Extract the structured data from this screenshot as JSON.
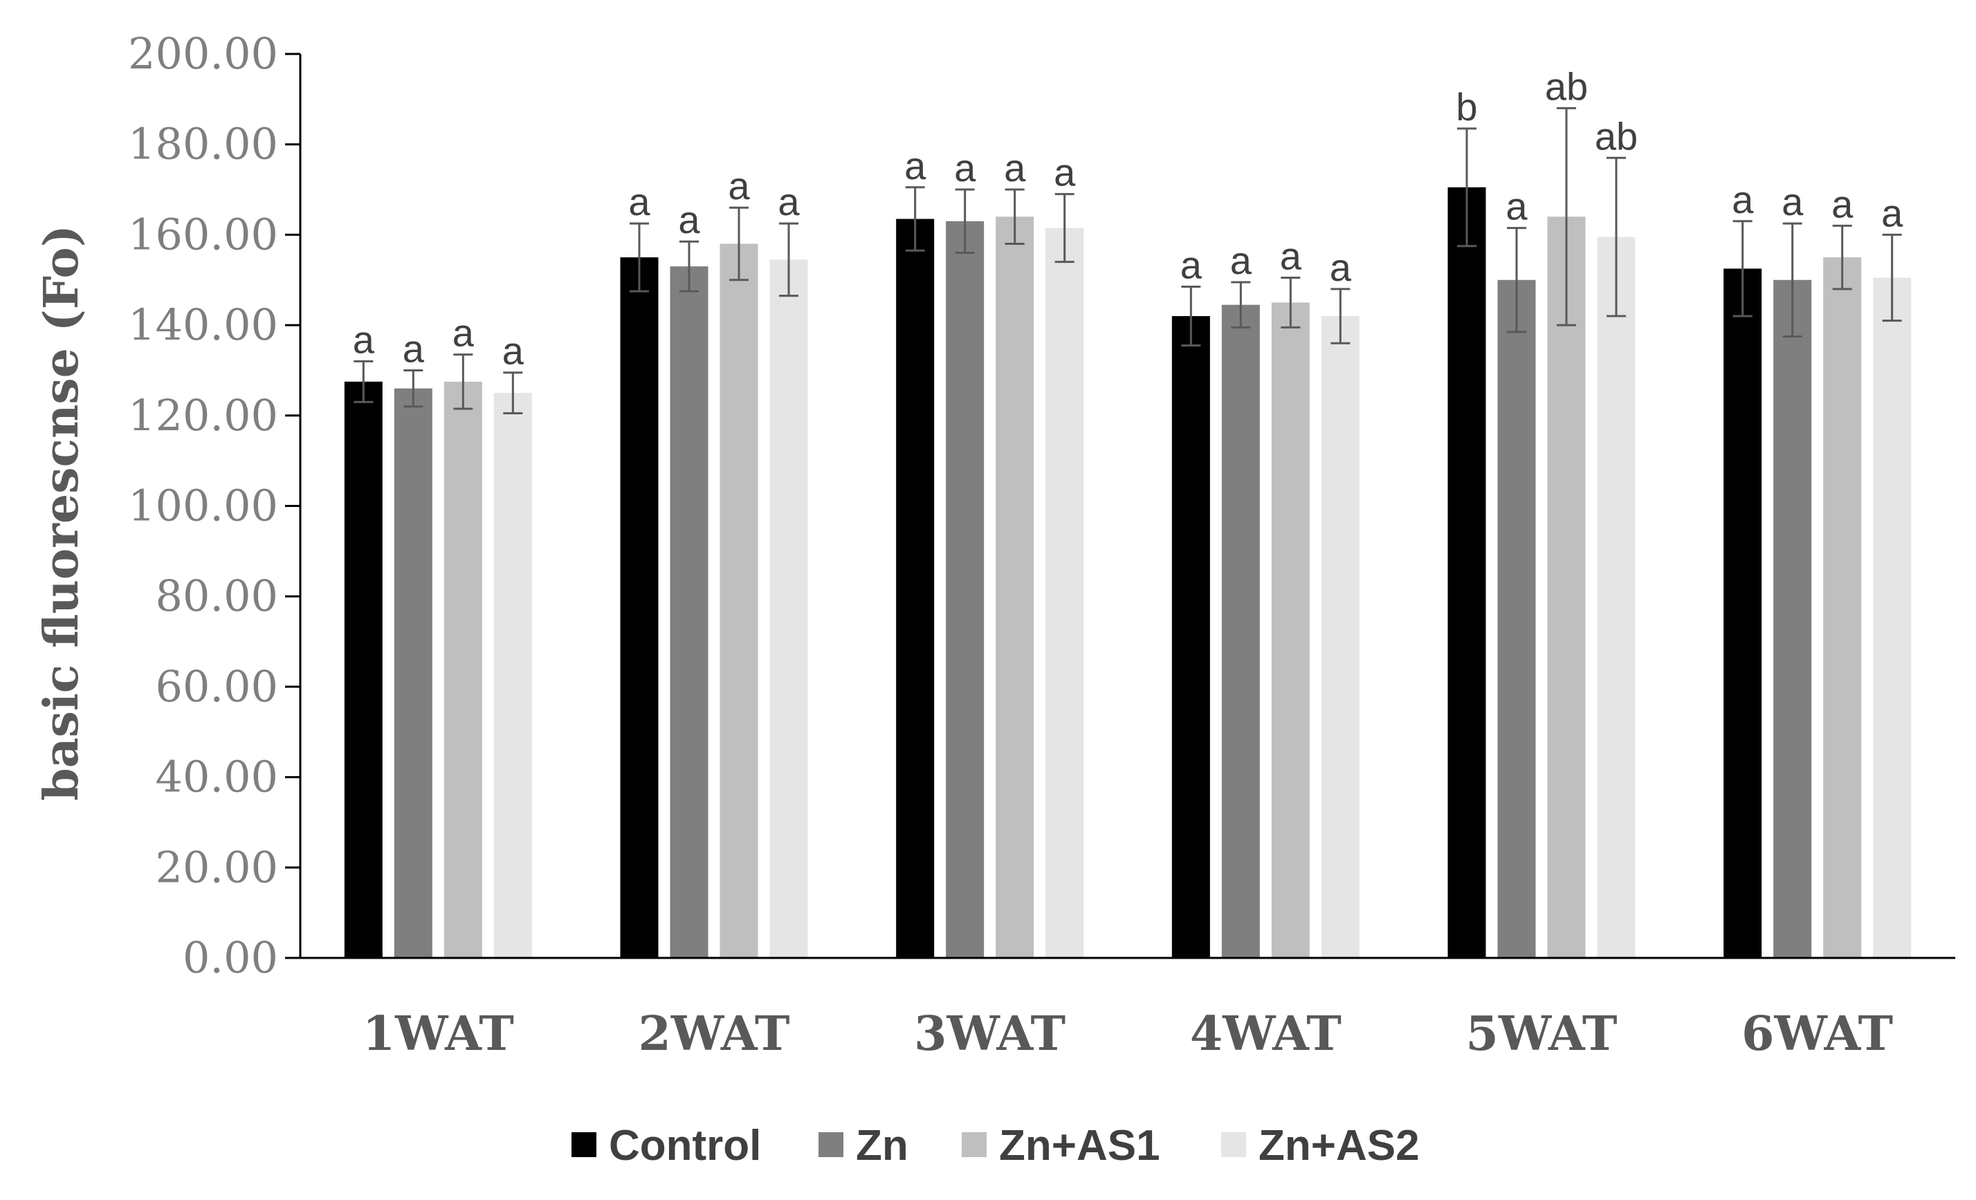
{
  "chart_data": {
    "type": "bar",
    "title": "",
    "xlabel": "",
    "ylabel": "basic fluorescnse (Fo)",
    "ylim": [
      0,
      200
    ],
    "yticks": [
      "0.00",
      "20.00",
      "40.00",
      "60.00",
      "80.00",
      "100.00",
      "120.00",
      "140.00",
      "160.00",
      "180.00",
      "200.00"
    ],
    "grid": false,
    "legend_position": "bottom",
    "categories": [
      "1WAT",
      "2WAT",
      "3WAT",
      "4WAT",
      "5WAT",
      "6WAT"
    ],
    "series": [
      {
        "name": "Control",
        "color": "#000000",
        "values": [
          127.5,
          155.0,
          163.5,
          142.0,
          170.5,
          152.5
        ],
        "errors": [
          4.5,
          7.5,
          7.0,
          6.5,
          13.0,
          10.5
        ],
        "labels": [
          "a",
          "a",
          "a",
          "a",
          "b",
          "a"
        ]
      },
      {
        "name": "Zn",
        "color": "#7f7f7f",
        "values": [
          126.0,
          153.0,
          163.0,
          144.5,
          150.0,
          150.0
        ],
        "errors": [
          4.0,
          5.5,
          7.0,
          5.0,
          11.5,
          12.5
        ],
        "labels": [
          "a",
          "a",
          "a",
          "a",
          "a",
          "a"
        ]
      },
      {
        "name": "Zn+AS1",
        "color": "#bfbfbf",
        "values": [
          127.5,
          158.0,
          164.0,
          145.0,
          164.0,
          155.0
        ],
        "errors": [
          6.0,
          8.0,
          6.0,
          5.5,
          24.0,
          7.0
        ],
        "labels": [
          "a",
          "a",
          "a",
          "a",
          "ab",
          "a"
        ]
      },
      {
        "name": "Zn+AS2",
        "color": "#e5e5e5",
        "values": [
          125.0,
          154.5,
          161.5,
          142.0,
          159.5,
          150.5
        ],
        "errors": [
          4.5,
          8.0,
          7.5,
          6.0,
          17.5,
          9.5
        ],
        "labels": [
          "a",
          "a",
          "a",
          "a",
          "ab",
          "a"
        ]
      }
    ]
  }
}
